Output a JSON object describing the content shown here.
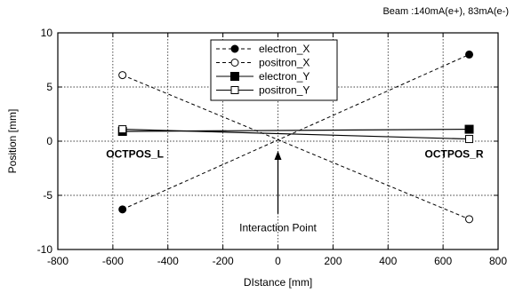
{
  "chart_data": {
    "type": "line",
    "xlabel": "DIstance [mm]",
    "ylabel": "Position [mm]",
    "xlim": [
      -800,
      800
    ],
    "ylim": [
      -10,
      10
    ],
    "xticks": [
      -800,
      -600,
      -400,
      -200,
      0,
      200,
      400,
      600,
      800
    ],
    "yticks": [
      -10,
      -5,
      0,
      5,
      10
    ],
    "grid": true,
    "legend_position": "top-center",
    "series": [
      {
        "name": "electron_X",
        "x": [
          -565,
          695
        ],
        "y": [
          -6.3,
          8.0
        ],
        "marker": "filled-circle",
        "line": "dashed"
      },
      {
        "name": "positron_X",
        "x": [
          -565,
          695
        ],
        "y": [
          6.1,
          -7.2
        ],
        "marker": "open-circle",
        "line": "dashed"
      },
      {
        "name": "electron_Y",
        "x": [
          -565,
          695
        ],
        "y": [
          0.9,
          1.1
        ],
        "marker": "filled-square",
        "line": "solid"
      },
      {
        "name": "positron_Y",
        "x": [
          -565,
          695
        ],
        "y": [
          1.1,
          0.2
        ],
        "marker": "open-square",
        "line": "solid"
      }
    ],
    "annotations": [
      {
        "text": "OCTPOS_L",
        "x": -520,
        "y": -1.2
      },
      {
        "text": "OCTPOS_R",
        "x": 640,
        "y": -1.2
      },
      {
        "text": "Interaction Point",
        "x": 0,
        "y": -8.0,
        "arrow_to": [
          0,
          -0.9
        ],
        "arrow_from": [
          0,
          -6.7
        ]
      }
    ],
    "note": "Beam :140mA(e+), 83mA(e-)"
  }
}
